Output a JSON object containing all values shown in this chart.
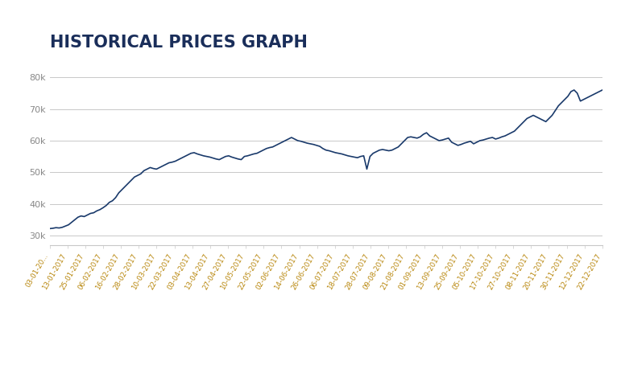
{
  "title": "HISTORICAL PRICES GRAPH",
  "title_color": "#1a2e5a",
  "title_fontsize": 15,
  "title_fontweight": "bold",
  "line_color": "#1a3a6b",
  "line_width": 1.2,
  "background_color": "#ffffff",
  "grid_color": "#c8c8c8",
  "tick_label_color": "#b8860b",
  "axis_label_color": "#888888",
  "ylim": [
    27000,
    83000
  ],
  "yticks": [
    30000,
    40000,
    50000,
    60000,
    70000,
    80000
  ],
  "ytick_labels": [
    "30k",
    "40k",
    "50k",
    "60k",
    "70k",
    "80k"
  ],
  "x_tick_labels": [
    "03-01-20...",
    "13-01-2017",
    "25-01-2017",
    "06-02-2017",
    "16-02-2017",
    "28-02-2017",
    "10-03-2017",
    "22-03-2017",
    "03-04-2017",
    "13-04-2017",
    "27-04-2017",
    "10-05-2017",
    "22-05-2017",
    "02-06-2017",
    "14-06-2017",
    "26-06-2017",
    "06-07-2017",
    "18-07-2017",
    "28-07-2017",
    "09-08-2017",
    "21-08-2017",
    "01-09-2017",
    "13-09-2017",
    "25-09-2017",
    "05-10-2017",
    "17-10-2017",
    "27-10-2017",
    "08-11-2017",
    "20-11-2017",
    "30-11-2017",
    "12-12-2017",
    "22-12-2017"
  ],
  "prices": [
    32200,
    32300,
    32500,
    32400,
    32600,
    33000,
    33400,
    34200,
    35000,
    35800,
    36200,
    36000,
    36500,
    37000,
    37200,
    37800,
    38200,
    38800,
    39500,
    40500,
    41000,
    42000,
    43500,
    44500,
    45500,
    46500,
    47500,
    48500,
    49000,
    49500,
    50500,
    51000,
    51500,
    51200,
    51000,
    51500,
    52000,
    52500,
    53000,
    53200,
    53500,
    54000,
    54500,
    55000,
    55500,
    56000,
    56200,
    55800,
    55500,
    55200,
    55000,
    54800,
    54500,
    54200,
    54000,
    54500,
    55000,
    55200,
    54800,
    54500,
    54200,
    54000,
    55000,
    55200,
    55500,
    55800,
    56000,
    56500,
    57000,
    57500,
    57800,
    58000,
    58500,
    59000,
    59500,
    60000,
    60500,
    61000,
    60500,
    60000,
    59800,
    59500,
    59200,
    59000,
    58800,
    58500,
    58200,
    57500,
    57000,
    56800,
    56500,
    56200,
    56000,
    55800,
    55500,
    55200,
    55000,
    54800,
    54600,
    55000,
    55200,
    51000,
    55000,
    56000,
    56500,
    57000,
    57200,
    57000,
    56800,
    57000,
    57500,
    58000,
    59000,
    60000,
    61000,
    61200,
    61000,
    60800,
    61200,
    62000,
    62500,
    61500,
    61000,
    60500,
    60000,
    60200,
    60500,
    60800,
    59500,
    59000,
    58500,
    58800,
    59200,
    59500,
    59800,
    59000,
    59500,
    60000,
    60200,
    60500,
    60800,
    61000,
    60500,
    60800,
    61200,
    61500,
    62000,
    62500,
    63000,
    64000,
    65000,
    66000,
    67000,
    67500,
    68000,
    67500,
    67000,
    66500,
    66000,
    67000,
    68000,
    69500,
    71000,
    72000,
    73000,
    74000,
    75500,
    76000,
    75000,
    72500,
    73000,
    73500,
    74000,
    74500,
    75000,
    75500,
    76000
  ]
}
